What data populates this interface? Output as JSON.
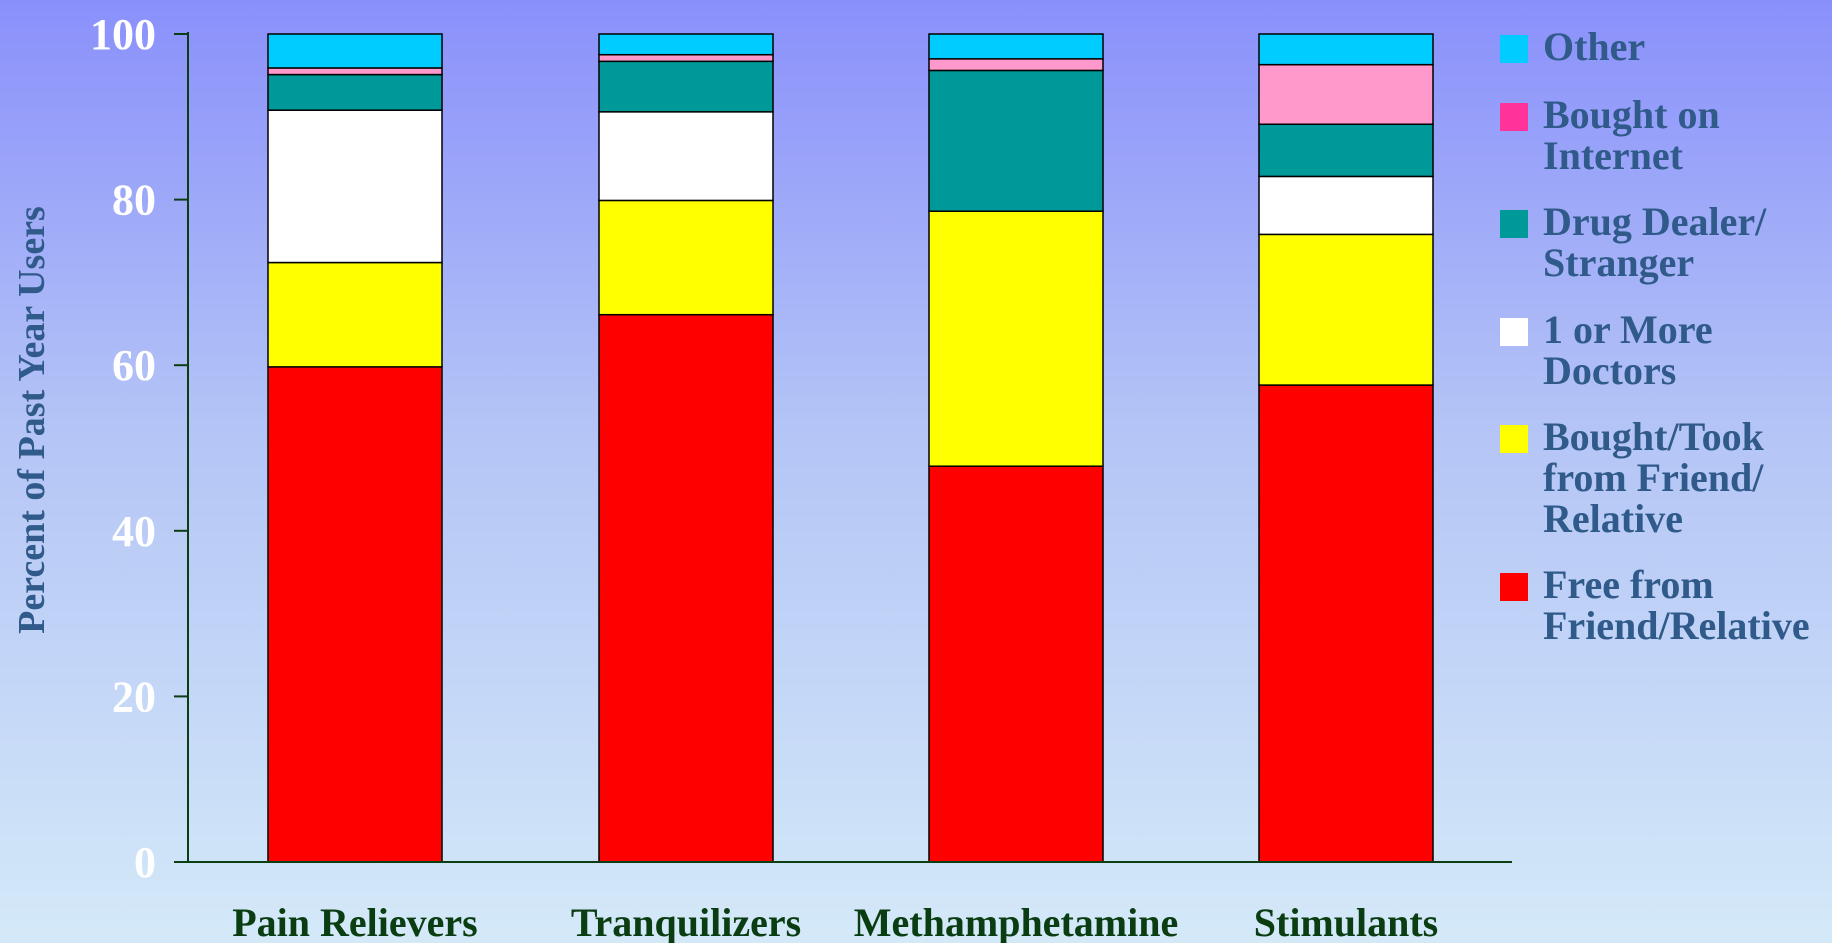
{
  "chart_data": {
    "type": "bar",
    "stacked": true,
    "ylabel": "Percent of Past Year Users",
    "ylim": [
      0,
      100
    ],
    "yticks": [
      "0",
      "20",
      "40",
      "60",
      "80",
      "100"
    ],
    "grid": false,
    "legend_position": "right",
    "categories": [
      "Pain Relievers",
      "Tranquilizers",
      "Methamphetamine",
      "Stimulants"
    ],
    "series": [
      {
        "name": "Free from Friend/Relative",
        "color": "#ff0000",
        "values": [
          59.8,
          66.1,
          47.8,
          57.6
        ]
      },
      {
        "name": "Bought/Took from Friend/ Relative",
        "color": "#ffff00",
        "values": [
          12.6,
          13.8,
          30.8,
          18.2
        ]
      },
      {
        "name": "1 or More Doctors",
        "color": "#ffffff",
        "values": [
          18.4,
          10.7,
          0.0,
          7.0
        ]
      },
      {
        "name": "Drug Dealer/ Stranger",
        "color": "#009999",
        "values": [
          4.3,
          6.1,
          17.0,
          6.3
        ]
      },
      {
        "name": "Bought on Internet",
        "color": "#ff99cc",
        "values": [
          0.8,
          0.8,
          1.4,
          7.2
        ]
      },
      {
        "name": "Other",
        "color": "#00ccff",
        "values": [
          4.1,
          2.5,
          3.0,
          3.7
        ]
      }
    ],
    "legend": [
      {
        "lines": [
          "Other"
        ],
        "color": "#00ccff"
      },
      {
        "lines": [
          "Bought on",
          "Internet"
        ],
        "color": "#ff3399"
      },
      {
        "lines": [
          "Drug Dealer/",
          "Stranger"
        ],
        "color": "#009999"
      },
      {
        "lines": [
          "1 or More",
          "Doctors"
        ],
        "color": "#ffffff"
      },
      {
        "lines": [
          "Bought/Took",
          "from Friend/",
          "Relative"
        ],
        "color": "#ffff00"
      },
      {
        "lines": [
          "Free from",
          "Friend/Relative"
        ],
        "color": "#ff0000"
      }
    ]
  }
}
